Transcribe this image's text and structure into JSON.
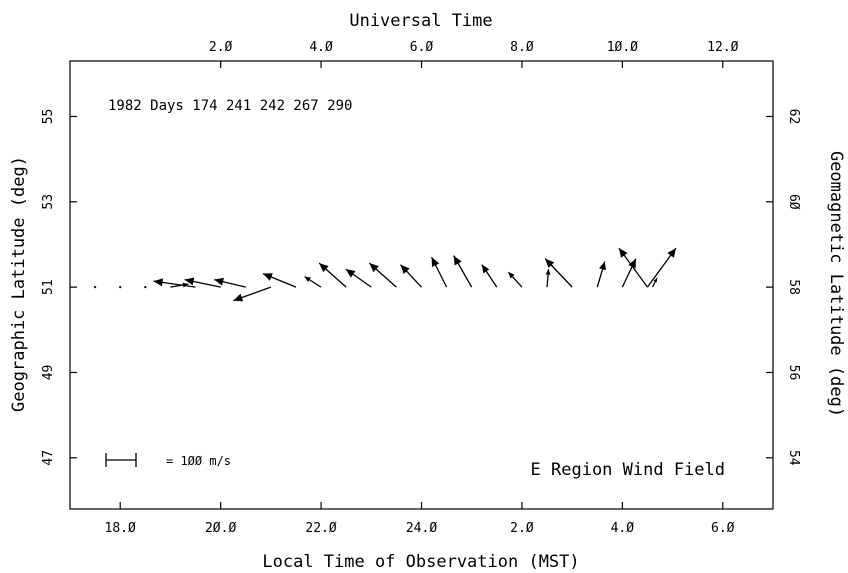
{
  "chart_data": {
    "type": "vector-field",
    "title": "E Region Wind Field",
    "annotation": "1982 Days 174  241  242  267  290",
    "x_bottom": {
      "label": "Local Time of Observation (MST)",
      "ticks": [
        "18.Ø",
        "2Ø.Ø",
        "22.Ø",
        "24.Ø",
        "2.Ø",
        "4.Ø",
        "6.Ø"
      ],
      "tick_hours": [
        18,
        20,
        22,
        24,
        26,
        28,
        30
      ],
      "range_hours": [
        17,
        31
      ]
    },
    "x_top": {
      "label": "Universal Time",
      "ticks": [
        "2.Ø",
        "4.Ø",
        "6.Ø",
        "8.Ø",
        "1Ø.Ø",
        "12.Ø"
      ],
      "tick_hours": [
        2,
        4,
        6,
        8,
        10,
        12
      ],
      "range_hours": [
        -1,
        13
      ]
    },
    "y_left": {
      "label": "Geographic Latitude (deg)",
      "ticks": [
        "47",
        "49",
        "51",
        "53",
        "55"
      ],
      "tick_values": [
        47,
        49,
        51,
        53,
        55
      ],
      "range": [
        45.8,
        56.3
      ]
    },
    "y_right": {
      "label": "Geomagnetic Latitude (deg)",
      "ticks": [
        "54",
        "56",
        "58",
        "6Ø",
        "62"
      ],
      "tick_values": [
        54,
        56,
        58,
        60,
        62
      ],
      "range": [
        52.8,
        63.3
      ]
    },
    "scale_label": "= 1ØØ m/s",
    "scale_speed_mps": 100,
    "vectors": [
      {
        "lt": 17.5,
        "lat": 51.0,
        "u": 0,
        "v": 0
      },
      {
        "lt": 18.0,
        "lat": 51.0,
        "u": 0,
        "v": 0
      },
      {
        "lt": 18.5,
        "lat": 51.0,
        "u": 0,
        "v": 0
      },
      {
        "lt": 19.0,
        "lat": 51.0,
        "u": 60,
        "v": 10
      },
      {
        "lt": 19.5,
        "lat": 51.0,
        "u": -140,
        "v": 20
      },
      {
        "lt": 20.0,
        "lat": 51.0,
        "u": -120,
        "v": 25
      },
      {
        "lt": 20.5,
        "lat": 51.0,
        "u": -105,
        "v": 25
      },
      {
        "lt": 21.0,
        "lat": 51.0,
        "u": -125,
        "v": -45
      },
      {
        "lt": 21.5,
        "lat": 51.0,
        "u": -110,
        "v": 45
      },
      {
        "lt": 22.0,
        "lat": 51.0,
        "u": -55,
        "v": 35
      },
      {
        "lt": 22.5,
        "lat": 51.0,
        "u": -90,
        "v": 80
      },
      {
        "lt": 23.0,
        "lat": 51.0,
        "u": -85,
        "v": 60
      },
      {
        "lt": 23.5,
        "lat": 51.0,
        "u": -90,
        "v": 80
      },
      {
        "lt": 24.0,
        "lat": 51.0,
        "u": -70,
        "v": 75
      },
      {
        "lt": 24.5,
        "lat": 51.0,
        "u": -50,
        "v": 100
      },
      {
        "lt": 25.0,
        "lat": 51.0,
        "u": -60,
        "v": 105
      },
      {
        "lt": 25.5,
        "lat": 51.0,
        "u": -50,
        "v": 75
      },
      {
        "lt": 26.0,
        "lat": 51.0,
        "u": -45,
        "v": 50
      },
      {
        "lt": 26.5,
        "lat": 51.0,
        "u": 5,
        "v": 60
      },
      {
        "lt": 27.0,
        "lat": 51.0,
        "u": -90,
        "v": 95
      },
      {
        "lt": 27.5,
        "lat": 51.0,
        "u": 25,
        "v": 85
      },
      {
        "lt": 28.0,
        "lat": 51.0,
        "u": 45,
        "v": 95
      },
      {
        "lt": 28.5,
        "lat": 51.0,
        "u": 95,
        "v": 130
      },
      {
        "lt": 28.5,
        "lat": 51.0,
        "u": -95,
        "v": 130
      },
      {
        "lt": 28.6,
        "lat": 51.0,
        "u": 15,
        "v": 30
      }
    ]
  }
}
